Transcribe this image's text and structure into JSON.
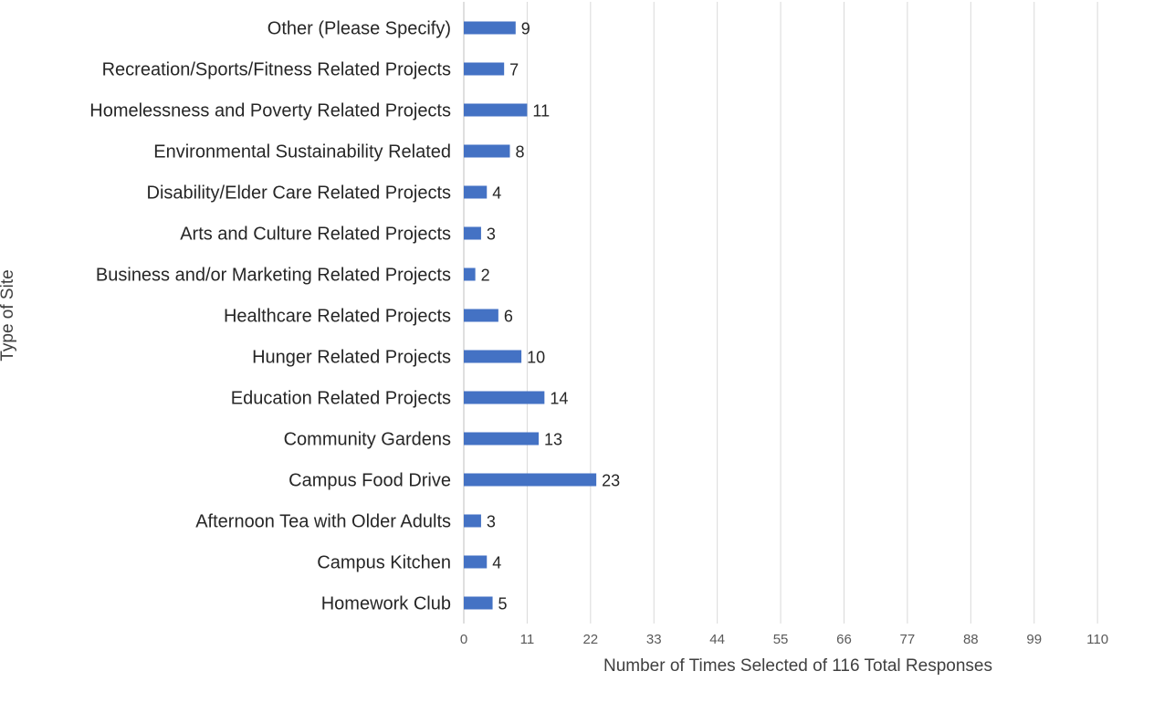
{
  "chart_data": {
    "type": "bar",
    "orientation": "horizontal",
    "categories": [
      "Other (Please Specify)",
      "Recreation/Sports/Fitness Related Projects",
      "Homelessness and Poverty Related Projects",
      "Environmental Sustainability Related",
      "Disability/Elder Care Related Projects",
      "Arts and Culture Related Projects",
      "Business and/or Marketing Related Projects",
      "Healthcare Related Projects",
      "Hunger Related Projects",
      "Education Related Projects",
      "Community Gardens",
      "Campus Food Drive",
      "Afternoon Tea with Older Adults",
      "Campus Kitchen",
      "Homework Club"
    ],
    "values": [
      9,
      7,
      11,
      8,
      4,
      3,
      2,
      6,
      10,
      14,
      13,
      23,
      3,
      4,
      5
    ],
    "xlabel": "Number of Times Selected of 116 Total Responses",
    "ylabel": "Type of Site",
    "xticks": [
      "0",
      "11",
      "22",
      "33",
      "44",
      "55",
      "66",
      "77",
      "88",
      "99",
      "110"
    ],
    "xlim": [
      0,
      116
    ],
    "grid": true,
    "bar_color": "#4472c4"
  }
}
